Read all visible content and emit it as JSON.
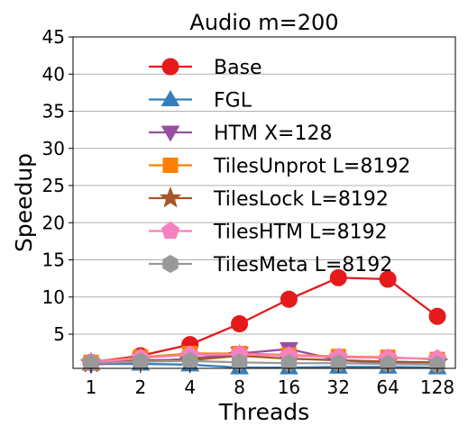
{
  "chart_data": {
    "type": "line",
    "title": "Audio m=200",
    "xlabel": "Threads",
    "ylabel": "Speedup",
    "categories": [
      "1",
      "2",
      "4",
      "8",
      "16",
      "32",
      "64",
      "128"
    ],
    "ylim": [
      0.4,
      45
    ],
    "yticks": [
      5,
      10,
      15,
      20,
      25,
      30,
      35,
      40,
      45
    ],
    "grid": "horizontal",
    "legend": "upper-center",
    "series": [
      {
        "name": "Base",
        "color": "#e41a1c",
        "marker": "circle",
        "values": [
          1.2,
          2.1,
          3.6,
          6.4,
          9.7,
          12.6,
          12.4,
          7.4
        ]
      },
      {
        "name": "FGL",
        "color": "#377eb8",
        "marker": "triangle-up",
        "values": [
          1.0,
          1.0,
          0.9,
          0.5,
          0.5,
          0.6,
          0.6,
          0.5
        ]
      },
      {
        "name": "HTM X=128",
        "color": "#984ea3",
        "marker": "triangle-down",
        "values": [
          0.9,
          1.3,
          1.7,
          2.4,
          3.0,
          1.5,
          1.1,
          0.9
        ]
      },
      {
        "name": "TilesUnprot L=8192",
        "color": "#ff7f00",
        "marker": "square",
        "values": [
          1.2,
          1.9,
          2.4,
          2.4,
          2.2,
          2.0,
          1.9,
          1.6
        ]
      },
      {
        "name": "TilesLock L=8192",
        "color": "#a65628",
        "marker": "star",
        "values": [
          1.1,
          1.5,
          1.5,
          2.1,
          1.7,
          1.5,
          1.3,
          1.2
        ]
      },
      {
        "name": "TilesHTM L=8192",
        "color": "#f781bf",
        "marker": "pentagon",
        "values": [
          1.2,
          1.8,
          2.2,
          2.3,
          2.1,
          1.9,
          1.8,
          1.7
        ]
      },
      {
        "name": "TilesMeta L=8192",
        "color": "#999999",
        "marker": "hexagon",
        "values": [
          1.1,
          1.3,
          1.4,
          1.2,
          1.1,
          1.1,
          1.0,
          0.9
        ]
      }
    ]
  }
}
